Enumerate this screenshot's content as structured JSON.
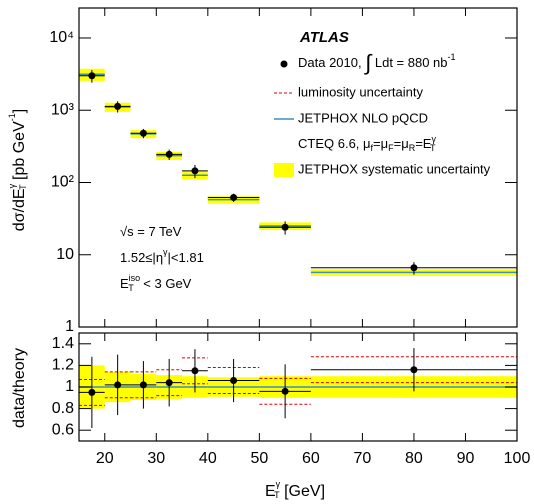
{
  "chart_data": [
    {
      "type": "errorbar",
      "log_y": true,
      "ylabel": [
        "dσ/dE",
        "γ",
        "T",
        " [pb GeV",
        "-1",
        "]"
      ],
      "ylim": [
        1,
        26000
      ],
      "yticks": [
        1,
        10,
        {
          "value": 100,
          "label": "10²"
        },
        {
          "value": 1000,
          "label": "10³"
        },
        {
          "value": 10000,
          "label": "10⁴"
        }
      ],
      "xlim": [
        15,
        100
      ],
      "xticks": [
        20,
        30,
        40,
        50,
        60,
        70,
        80,
        90,
        100
      ],
      "x_tick_labels": false,
      "bins": [
        15,
        20,
        25,
        30,
        35,
        40,
        50,
        60,
        100
      ],
      "x": [
        17.5,
        22.5,
        27.5,
        32.5,
        37.5,
        45,
        55,
        80
      ],
      "series": [
        {
          "name": "JETPHOX systematic uncertainty",
          "kind": "band",
          "color": "#ffff00",
          "band_low": [
            2550,
            950,
            410,
            205,
            110,
            51,
            22,
            5.1
          ],
          "band_high": [
            3750,
            1270,
            530,
            265,
            142,
            65,
            28,
            6.3
          ]
        },
        {
          "name": "JETPHOX NLO pQCD",
          "kind": "line",
          "color": "#3a8fc8",
          "values": [
            3150,
            1110,
            470,
            235,
            126,
            58,
            25,
            5.7
          ]
        },
        {
          "name": [
            "Data 2010, ",
            "∫",
            " Ldt = 880 nb",
            "-1"
          ],
          "kind": "points",
          "color": "#000000",
          "values": [
            3000,
            1130,
            480,
            245,
            145,
            62,
            24,
            6.6
          ],
          "errors": [
            600,
            200,
            70,
            40,
            30,
            8,
            5,
            1.3
          ]
        }
      ],
      "experiment": "ATLAS",
      "theory_note": [
        "CTEQ 6.6, μ",
        "f",
        "=μ",
        "F",
        "=μ",
        "R",
        "=E",
        "γ",
        "T"
      ],
      "annotations": [
        [
          "√s = 7 TeV"
        ],
        [
          "1.52≤|η",
          "γ",
          "|<1.81"
        ],
        [
          "E",
          "iso",
          "T",
          " < 3 GeV"
        ]
      ]
    },
    {
      "type": "errorbar",
      "log_y": false,
      "ylabel": "data/theory",
      "xlabel": [
        "E",
        "γ",
        "T",
        " [GeV]"
      ],
      "ylim": [
        0.5,
        1.5
      ],
      "yticks": [
        0.6,
        0.8,
        1,
        1.2,
        1.4
      ],
      "xlim": [
        15,
        100
      ],
      "xticks": [
        20,
        30,
        40,
        50,
        60,
        70,
        80,
        90,
        100
      ],
      "x_tick_labels": true,
      "bins": [
        15,
        20,
        25,
        30,
        35,
        40,
        50,
        60,
        100
      ],
      "x": [
        17.5,
        22.5,
        27.5,
        32.5,
        37.5,
        45,
        55,
        80
      ],
      "series": [
        {
          "kind": "band",
          "color": "#ffff00",
          "band_low": [
            0.8,
            0.86,
            0.88,
            0.89,
            0.9,
            0.91,
            0.9,
            0.9
          ],
          "band_high": [
            1.2,
            1.14,
            1.12,
            1.11,
            1.1,
            1.09,
            1.1,
            1.1
          ]
        },
        {
          "kind": "line",
          "color": "#3a8fc8",
          "values": [
            1,
            1,
            1,
            1,
            1,
            1,
            1,
            1
          ]
        },
        {
          "name": "luminosity uncertainty",
          "kind": "dashed_band",
          "color": "#dd0000",
          "band_low": [
            0.83,
            0.9,
            0.9,
            0.92,
            1.03,
            0.94,
            0.84,
            1.04
          ],
          "band_high": [
            1.07,
            1.14,
            1.14,
            1.16,
            1.27,
            1.18,
            1.08,
            1.28
          ]
        },
        {
          "kind": "points",
          "color": "#000000",
          "values": [
            0.95,
            1.02,
            1.02,
            1.04,
            1.15,
            1.06,
            0.96,
            1.16
          ],
          "errors": [
            0.33,
            0.28,
            0.22,
            0.22,
            0.2,
            0.2,
            0.25,
            0.2
          ]
        }
      ]
    }
  ]
}
